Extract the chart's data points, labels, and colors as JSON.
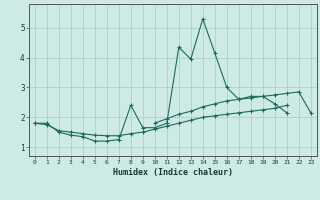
{
  "xlabel": "Humidex (Indice chaleur)",
  "background_color": "#ceeae5",
  "grid_color": "#a8d4cd",
  "line_color": "#1a6b5e",
  "x": [
    0,
    1,
    2,
    3,
    4,
    5,
    6,
    7,
    8,
    9,
    10,
    11,
    12,
    13,
    14,
    15,
    16,
    17,
    18,
    19,
    20,
    21,
    22,
    23
  ],
  "series1": [
    1.8,
    1.8,
    1.5,
    1.4,
    1.35,
    1.2,
    1.2,
    1.25,
    2.4,
    1.65,
    1.65,
    1.8,
    4.35,
    3.95,
    5.3,
    4.15,
    3.0,
    2.6,
    2.7,
    2.7,
    2.45,
    2.15,
    null,
    null
  ],
  "series3": [
    1.8,
    1.75,
    1.55,
    1.5,
    1.45,
    1.4,
    1.38,
    1.38,
    1.45,
    1.5,
    1.6,
    1.7,
    1.8,
    1.9,
    2.0,
    2.05,
    2.1,
    2.15,
    2.2,
    2.25,
    2.3,
    2.4,
    null,
    null
  ],
  "series4": [
    null,
    null,
    null,
    null,
    null,
    null,
    null,
    null,
    null,
    null,
    1.8,
    1.95,
    2.1,
    2.2,
    2.35,
    2.45,
    2.55,
    2.6,
    2.65,
    2.7,
    2.75,
    2.8,
    2.85,
    2.15
  ],
  "ylim": [
    0.7,
    5.8
  ],
  "xlim": [
    -0.5,
    23.5
  ],
  "yticks": [
    1,
    2,
    3,
    4,
    5
  ],
  "xticks": [
    0,
    1,
    2,
    3,
    4,
    5,
    6,
    7,
    8,
    9,
    10,
    11,
    12,
    13,
    14,
    15,
    16,
    17,
    18,
    19,
    20,
    21,
    22,
    23
  ]
}
